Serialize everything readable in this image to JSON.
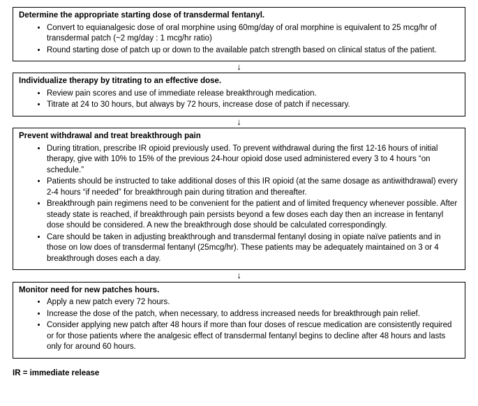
{
  "boxes": [
    {
      "title": "Determine the appropriate starting dose of transdermal fentanyl.",
      "bullets": [
        "Convert to equianalgesic dose of oral morphine using 60mg/day of oral morphine is equivalent to 25 mcg/hr of transdermal patch (~2 mg/day : 1 mcg/hr ratio)",
        "Round starting dose of patch up or down to the available patch strength based on clinical status of the patient."
      ]
    },
    {
      "title": "Individualize therapy by titrating to an effective dose.",
      "bullets": [
        "Review pain scores and use of immediate release breakthrough medication.",
        "Titrate at 24 to 30 hours, but always by 72 hours, increase dose of patch if necessary."
      ]
    },
    {
      "title": "Prevent withdrawal and treat breakthrough pain",
      "bullets": [
        "During titration, prescribe IR opioid previously used. To prevent withdrawal during the first 12-16 hours of initial therapy, give with 10% to 15% of the previous 24-hour opioid dose used administered every 3 to 4 hours “on schedule.”",
        "Patients should be instructed to take additional doses of this IR opioid (at the same dosage as antiwithdrawal) every 2-4 hours “if needed” for breakthrough pain during titration and thereafter.",
        "Breakthrough pain regimens need to be convenient for the patient and of limited frequency whenever possible. After steady state is reached, if breakthrough pain persists beyond a few doses each day then an increase in fentanyl dose should be considered. A new the breakthrough dose should be calculated correspondingly.",
        "Care should be taken in adjusting breakthrough and transdermal fentanyl dosing in opiate naïve patients and in those on low does of transdermal fentanyl (25mcg/hr). These patients may be adequately maintained on 3 or 4 breakthrough doses each a day."
      ]
    },
    {
      "title": "Monitor need for new patches hours.",
      "bullets": [
        "Apply a new patch every 72 hours.",
        "Increase the dose of the patch, when necessary, to address increased needs for breakthrough pain relief.",
        "Consider applying new patch after 48 hours if more than four doses of rescue medication are consistently required or for those patients where the analgesic effect of transdermal fentanyl begins to decline after 48 hours and lasts only for around 60 hours."
      ]
    }
  ],
  "arrow": "↓",
  "footnote": "IR = immediate release"
}
